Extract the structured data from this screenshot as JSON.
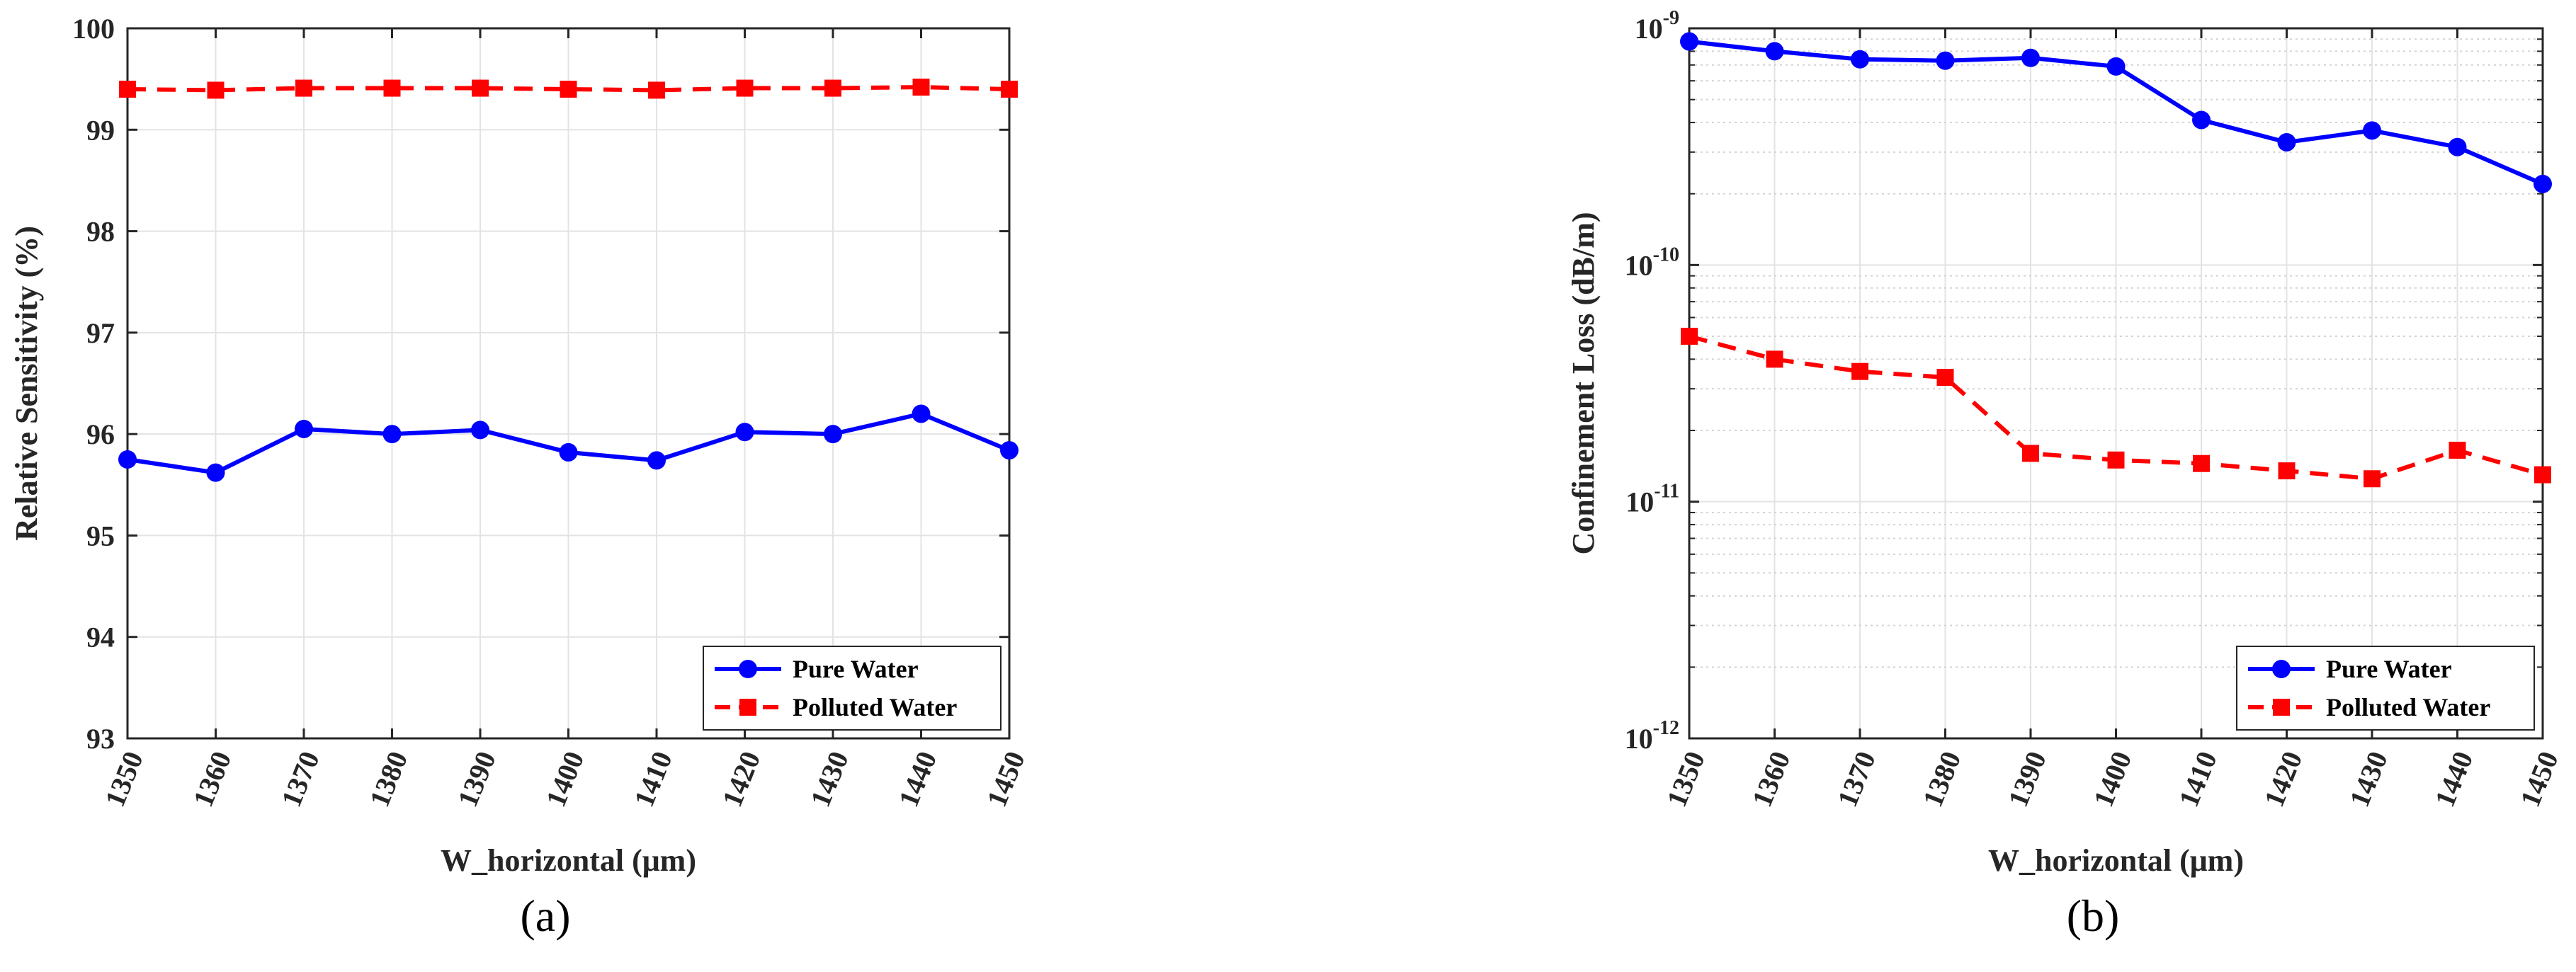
{
  "chart_data": [
    {
      "id": "a",
      "type": "line",
      "panel_label": "(a)",
      "xlabel": "W_horizontal (μm)",
      "ylabel": "Relative Sensitivity (%)",
      "x": [
        1350,
        1360,
        1370,
        1380,
        1390,
        1400,
        1410,
        1420,
        1430,
        1440,
        1450
      ],
      "xlim": [
        1350,
        1450
      ],
      "ylim": [
        93,
        100
      ],
      "yscale": "linear",
      "yticks": [
        93,
        94,
        95,
        96,
        97,
        98,
        99,
        100
      ],
      "grid": true,
      "legend": "bottom-right",
      "series": [
        {
          "name": "Pure Water",
          "color": "#0000ff",
          "style": "solid",
          "marker": "circle",
          "values": [
            95.75,
            95.62,
            96.05,
            96.0,
            96.04,
            95.82,
            95.74,
            96.02,
            96.0,
            96.2,
            95.84
          ]
        },
        {
          "name": "Polluted Water",
          "color": "#ff0000",
          "style": "dashed",
          "marker": "square",
          "values": [
            99.4,
            99.39,
            99.41,
            99.41,
            99.41,
            99.4,
            99.39,
            99.41,
            99.41,
            99.42,
            99.4
          ]
        }
      ]
    },
    {
      "id": "b",
      "type": "line",
      "panel_label": "(b)",
      "xlabel": "W_horizontal (μm)",
      "ylabel": "Confinement Loss (dB/m)",
      "x": [
        1350,
        1360,
        1370,
        1380,
        1390,
        1400,
        1410,
        1420,
        1430,
        1440,
        1450
      ],
      "xlim": [
        1350,
        1450
      ],
      "ylim": [
        1e-12,
        1e-09
      ],
      "yscale": "log",
      "yticks": [
        {
          "base": "10",
          "exp": "-12"
        },
        {
          "base": "10",
          "exp": "-11"
        },
        {
          "base": "10",
          "exp": "-10"
        },
        {
          "base": "10",
          "exp": "-9"
        }
      ],
      "grid": true,
      "legend": "bottom-right",
      "series": [
        {
          "name": "Pure Water",
          "color": "#0000ff",
          "style": "solid",
          "marker": "circle",
          "values": [
            8.8e-10,
            8e-10,
            7.4e-10,
            7.3e-10,
            7.5e-10,
            6.9e-10,
            4.1e-10,
            3.3e-10,
            3.7e-10,
            3.15e-10,
            2.2e-10
          ]
        },
        {
          "name": "Polluted Water",
          "color": "#ff0000",
          "style": "dashed",
          "marker": "square",
          "values": [
            5e-11,
            4e-11,
            3.55e-11,
            3.35e-11,
            1.6e-11,
            1.5e-11,
            1.45e-11,
            1.35e-11,
            1.25e-11,
            1.65e-11,
            1.3e-11
          ]
        }
      ]
    }
  ]
}
